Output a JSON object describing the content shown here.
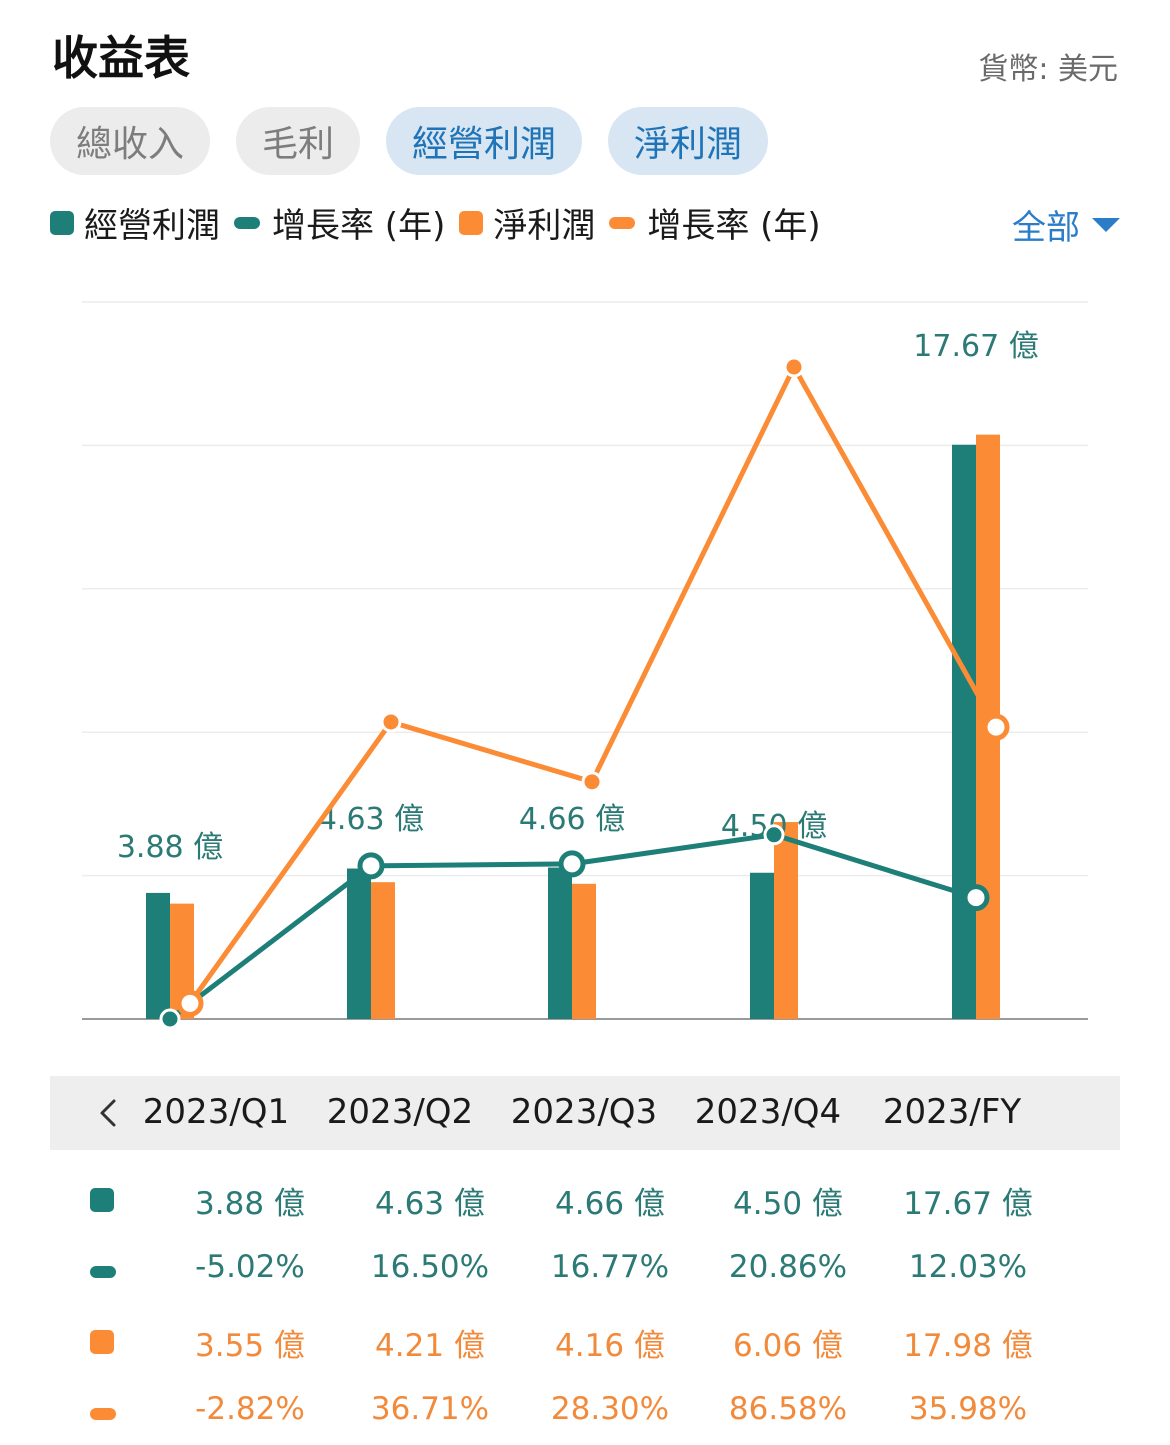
{
  "header": {
    "title": "收益表",
    "currency": "貨幣: 美元"
  },
  "tabs": [
    {
      "label": "總收入",
      "selected": false
    },
    {
      "label": "毛利",
      "selected": false
    },
    {
      "label": "經營利潤",
      "selected": true
    },
    {
      "label": "淨利潤",
      "selected": true
    }
  ],
  "legend": [
    {
      "label": "經營利潤",
      "shape": "square",
      "color": "#1e7f78"
    },
    {
      "label": "增長率 (年)",
      "shape": "line",
      "color": "#1e7f78"
    },
    {
      "label": "淨利潤",
      "shape": "square",
      "color": "#fb8c35"
    },
    {
      "label": "增長率 (年)",
      "shape": "line",
      "color": "#fb8c35"
    }
  ],
  "filter": {
    "label": "全部"
  },
  "colors": {
    "teal": "#1e7f78",
    "orange": "#fb8c35",
    "accent": "#2a7dc6"
  },
  "icons": {
    "back": "chevron-left-icon",
    "filter": "caret-down-icon"
  },
  "chart_data": {
    "type": "bar+line",
    "categories": [
      "2023/Q1",
      "2023/Q2",
      "2023/Q3",
      "2023/Q4",
      "2023/FY"
    ],
    "unit": "億",
    "bar_series": [
      {
        "name": "經營利潤",
        "values": [
          3.88,
          4.63,
          4.66,
          4.5,
          17.67
        ],
        "color": "#1e7f78"
      },
      {
        "name": "淨利潤",
        "values": [
          3.55,
          4.21,
          4.16,
          6.06,
          17.98
        ],
        "color": "#fb8c35"
      }
    ],
    "line_series": [
      {
        "name": "增長率 (年)",
        "values": [
          -5.02,
          16.5,
          16.77,
          20.86,
          12.03
        ],
        "color": "#1e7f78"
      },
      {
        "name": "增長率 (年)",
        "values": [
          -2.82,
          36.71,
          28.3,
          86.58,
          35.98
        ],
        "color": "#fb8c35"
      }
    ],
    "bar_labels": [
      "3.88 億",
      "4.63 億",
      "4.66 億",
      "4.50 億",
      "17.67 億"
    ],
    "bar_ylim": [
      0,
      20
    ],
    "line_ylim": [
      -5.02,
      86.58
    ],
    "grid": true
  },
  "table": {
    "rows": [
      {
        "marker": "square",
        "color": "#1e7f78",
        "values": [
          "3.88 億",
          "4.63 億",
          "4.66 億",
          "4.50 億",
          "17.67 億"
        ]
      },
      {
        "marker": "line",
        "color": "#1e7f78",
        "values": [
          "-5.02%",
          "16.50%",
          "16.77%",
          "20.86%",
          "12.03%"
        ]
      },
      {
        "marker": "square",
        "color": "#fb8c35",
        "values": [
          "3.55 億",
          "4.21 億",
          "4.16 億",
          "6.06 億",
          "17.98 億"
        ]
      },
      {
        "marker": "line",
        "color": "#fb8c35",
        "values": [
          "-2.82%",
          "36.71%",
          "28.30%",
          "86.58%",
          "35.98%"
        ]
      }
    ]
  }
}
